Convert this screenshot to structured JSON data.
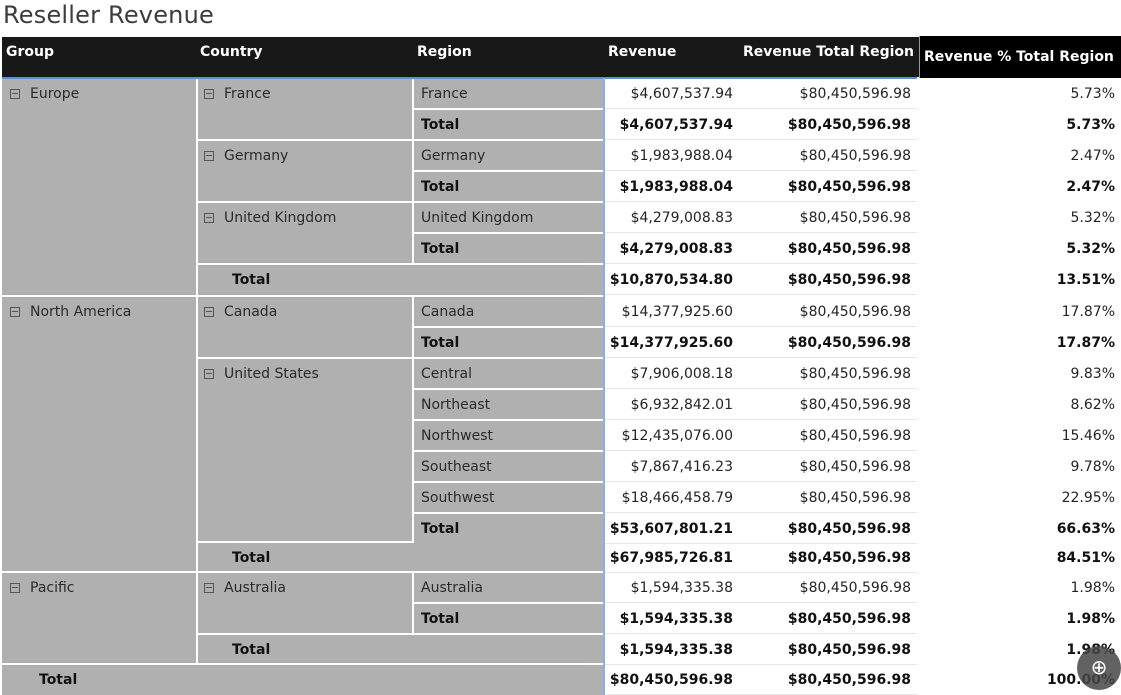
{
  "title": "Reseller Revenue",
  "headers": {
    "group": "Group",
    "country": "Country",
    "region": "Region",
    "revenue": "Revenue",
    "revenue_total_region": "Revenue Total Region",
    "revenue_pct_total_region": "Revenue % Total Region"
  },
  "groups": {
    "europe": "Europe",
    "north_america": "North America",
    "pacific": "Pacific"
  },
  "countries": {
    "france": "France",
    "germany": "Germany",
    "united_kingdom": "United Kingdom",
    "canada": "Canada",
    "united_states": "United States",
    "australia": "Australia"
  },
  "total_label": "Total",
  "rows": [
    {
      "region": "France",
      "revenue": "$4,607,537.94",
      "rtr": "$80,450,596.98",
      "pct": "5.73%"
    },
    {
      "region": "Total",
      "revenue": "$4,607,537.94",
      "rtr": "$80,450,596.98",
      "pct": "5.73%"
    },
    {
      "region": "Germany",
      "revenue": "$1,983,988.04",
      "rtr": "$80,450,596.98",
      "pct": "2.47%"
    },
    {
      "region": "Total",
      "revenue": "$1,983,988.04",
      "rtr": "$80,450,596.98",
      "pct": "2.47%"
    },
    {
      "region": "United Kingdom",
      "revenue": "$4,279,008.83",
      "rtr": "$80,450,596.98",
      "pct": "5.32%"
    },
    {
      "region": "Total",
      "revenue": "$4,279,008.83",
      "rtr": "$80,450,596.98",
      "pct": "5.32%"
    },
    {
      "region": "",
      "revenue": "$10,870,534.80",
      "rtr": "$80,450,596.98",
      "pct": "13.51%"
    },
    {
      "region": "Canada",
      "revenue": "$14,377,925.60",
      "rtr": "$80,450,596.98",
      "pct": "17.87%"
    },
    {
      "region": "Total",
      "revenue": "$14,377,925.60",
      "rtr": "$80,450,596.98",
      "pct": "17.87%"
    },
    {
      "region": "Central",
      "revenue": "$7,906,008.18",
      "rtr": "$80,450,596.98",
      "pct": "9.83%"
    },
    {
      "region": "Northeast",
      "revenue": "$6,932,842.01",
      "rtr": "$80,450,596.98",
      "pct": "8.62%"
    },
    {
      "region": "Northwest",
      "revenue": "$12,435,076.00",
      "rtr": "$80,450,596.98",
      "pct": "15.46%"
    },
    {
      "region": "Southeast",
      "revenue": "$7,867,416.23",
      "rtr": "$80,450,596.98",
      "pct": "9.78%"
    },
    {
      "region": "Southwest",
      "revenue": "$18,466,458.79",
      "rtr": "$80,450,596.98",
      "pct": "22.95%"
    },
    {
      "region": "Total",
      "revenue": "$53,607,801.21",
      "rtr": "$80,450,596.98",
      "pct": "66.63%"
    },
    {
      "region": "",
      "revenue": "$67,985,726.81",
      "rtr": "$80,450,596.98",
      "pct": "84.51%"
    },
    {
      "region": "Australia",
      "revenue": "$1,594,335.38",
      "rtr": "$80,450,596.98",
      "pct": "1.98%"
    },
    {
      "region": "Total",
      "revenue": "$1,594,335.38",
      "rtr": "$80,450,596.98",
      "pct": "1.98%"
    },
    {
      "region": "",
      "revenue": "$1,594,335.38",
      "rtr": "$80,450,596.98",
      "pct": "1.98%"
    },
    {
      "region": "",
      "revenue": "$80,450,596.98",
      "rtr": "$80,450,596.98",
      "pct": "100.00%"
    }
  ],
  "zoom_icon": "zoom-in-icon"
}
